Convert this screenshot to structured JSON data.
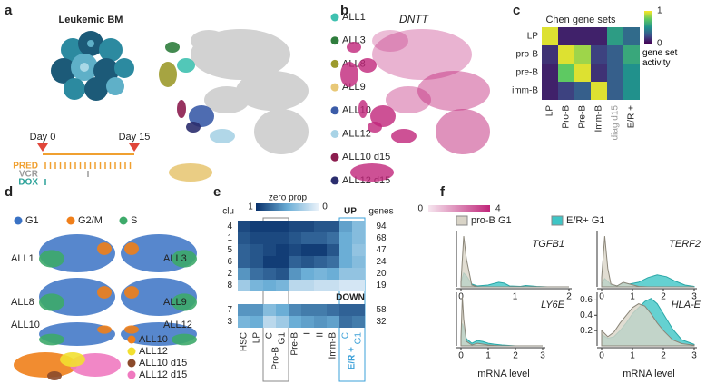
{
  "a": {
    "label": "a",
    "title": "Leukemic BM",
    "timeline": {
      "start": "Day 0",
      "end": "Day 15",
      "treatments": [
        {
          "name": "PRED",
          "color": "#f0a030"
        },
        {
          "name": "VCR",
          "color": "#9a9a9a"
        },
        {
          "name": "DOX",
          "color": "#2aa198"
        }
      ]
    },
    "legend": [
      {
        "name": "ALL1",
        "color": "#3fc1b0"
      },
      {
        "name": "ALL3",
        "color": "#2f7d3d"
      },
      {
        "name": "ALL8",
        "color": "#9c9a2c"
      },
      {
        "name": "ALL9",
        "color": "#e8c877"
      },
      {
        "name": "ALL10",
        "color": "#3b5ca8"
      },
      {
        "name": "ALL12",
        "color": "#a8d3e6"
      },
      {
        "name": "ALL10 d15",
        "color": "#8c1d4f"
      },
      {
        "name": "ALL12 d15",
        "color": "#2b2d6e"
      }
    ]
  },
  "b": {
    "label": "b",
    "gene": "DNTT",
    "colorbar": {
      "ticks": [
        0,
        4
      ],
      "colors": [
        "#f6e6ef",
        "#c0267a"
      ]
    }
  },
  "c": {
    "label": "c",
    "title": "Chen gene sets",
    "rows": [
      "LP",
      "pro-B",
      "pre-B",
      "imm-B"
    ],
    "columns": [
      "LP",
      "Pro-B",
      "Pre-B",
      "Imm-B",
      "diag d15",
      "E/R +"
    ],
    "values": [
      [
        0.95,
        0.1,
        0.1,
        0.1,
        0.55,
        0.35
      ],
      [
        0.15,
        0.95,
        0.85,
        0.2,
        0.3,
        0.6
      ],
      [
        0.1,
        0.75,
        0.95,
        0.15,
        0.3,
        0.5
      ],
      [
        0.1,
        0.2,
        0.3,
        0.95,
        0.3,
        0.5
      ]
    ],
    "colorbar": {
      "ticks": [
        0,
        1
      ],
      "label": "gene set activity"
    }
  },
  "d": {
    "label": "d",
    "phases": [
      {
        "name": "G1",
        "color": "#3a72c4"
      },
      {
        "name": "G2/M",
        "color": "#f07f1a"
      },
      {
        "name": "S",
        "color": "#3daa6a"
      }
    ],
    "samples": [
      "ALL1",
      "ALL3",
      "ALL8",
      "ALL9",
      "ALL10",
      "ALL12"
    ],
    "legend": [
      {
        "name": "ALL10",
        "color": "#f07f1a"
      },
      {
        "name": "ALL12",
        "color": "#f2e030"
      },
      {
        "name": "ALL10 d15",
        "color": "#8b4a2b"
      },
      {
        "name": "ALL12 d15",
        "color": "#f07ac0"
      }
    ]
  },
  "e": {
    "label": "e",
    "row_header": "clu",
    "rows": [
      "4",
      "1",
      "5",
      "6",
      "2",
      "8",
      "7",
      "3"
    ],
    "genes_header": "genes",
    "genes": [
      94,
      68,
      47,
      24,
      20,
      19,
      58,
      32
    ],
    "up": "UP",
    "down": "DOWN",
    "colorbar": {
      "title": "zero prop",
      "ticks": [
        1,
        0
      ]
    },
    "columns": [
      "HSC",
      "LP",
      "C",
      "G1",
      "Pre-B",
      "I",
      "II",
      "Imm-B",
      "C",
      "G1"
    ],
    "groups": [
      "Pro-B",
      "E/R +"
    ],
    "values": [
      [
        0.9,
        0.95,
        0.95,
        0.95,
        0.9,
        0.9,
        0.85,
        0.85,
        0.55,
        0.4
      ],
      [
        0.85,
        0.9,
        0.9,
        0.9,
        0.85,
        0.8,
        0.8,
        0.75,
        0.5,
        0.4
      ],
      [
        0.8,
        0.85,
        0.9,
        0.95,
        0.9,
        0.95,
        0.95,
        0.85,
        0.5,
        0.35
      ],
      [
        0.8,
        0.85,
        0.95,
        0.95,
        0.8,
        0.85,
        0.8,
        0.75,
        0.5,
        0.4
      ],
      [
        0.6,
        0.75,
        0.8,
        0.85,
        0.6,
        0.5,
        0.45,
        0.5,
        0.35,
        0.35
      ],
      [
        0.3,
        0.45,
        0.5,
        0.45,
        0.2,
        0.2,
        0.15,
        0.15,
        0.1,
        0.1
      ],
      [
        0.6,
        0.6,
        0.4,
        0.5,
        0.65,
        0.7,
        0.7,
        0.75,
        0.8,
        0.8
      ],
      [
        0.45,
        0.5,
        0.2,
        0.3,
        0.5,
        0.55,
        0.6,
        0.55,
        0.75,
        0.7
      ]
    ]
  },
  "f": {
    "label": "f",
    "xlabel": "mRNA level",
    "series": [
      {
        "name": "pro-B G1",
        "color": "#d9d4c7"
      },
      {
        "name": "E/R+ G1",
        "color": "#3ec5c5"
      }
    ],
    "plots": [
      {
        "gene": "TGFB1",
        "xlim": [
          0,
          2
        ],
        "xticks": [
          0,
          1,
          2
        ],
        "ylim": [
          0,
          6
        ],
        "x": [
          0,
          0.05,
          0.1,
          0.2,
          0.3,
          0.5,
          0.7,
          0.8,
          0.9,
          1.1,
          1.2,
          1.4,
          1.6,
          1.8,
          2.0
        ],
        "values": [
          [
            0.5,
            5.5,
            3,
            0.2,
            0,
            0,
            0,
            0,
            0,
            0,
            0,
            0,
            0,
            0,
            0
          ],
          [
            0.5,
            1.5,
            1.2,
            0.3,
            0.1,
            0.2,
            0.5,
            0.4,
            0.1,
            0.05,
            0.15,
            0.05,
            0,
            0,
            0
          ]
        ]
      },
      {
        "gene": "TERF2",
        "xlim": [
          0,
          3
        ],
        "xticks": [
          0,
          1,
          2,
          3
        ],
        "ylim": [
          0,
          6
        ],
        "x": [
          0,
          0.1,
          0.2,
          0.3,
          0.5,
          0.7,
          0.9,
          1.2,
          1.5,
          1.8,
          2.1,
          2.4,
          2.7,
          3.0
        ],
        "values": [
          [
            1,
            5.5,
            2,
            0.3,
            0.1,
            0.5,
            0.3,
            0.05,
            0,
            0,
            0,
            0,
            0,
            0
          ],
          [
            0.3,
            0.9,
            0.6,
            0.2,
            0.1,
            0.4,
            0.3,
            0.5,
            1.0,
            1.3,
            1.1,
            0.6,
            0.2,
            0.05
          ]
        ]
      },
      {
        "gene": "LY6E",
        "xlim": [
          0,
          3
        ],
        "xticks": [
          0,
          1,
          2,
          3
        ],
        "ylim": [
          0,
          6
        ],
        "x": [
          0,
          0.05,
          0.1,
          0.2,
          0.4,
          0.6,
          0.8,
          1.0,
          1.2,
          1.5,
          2,
          2.5,
          3
        ],
        "values": [
          [
            1,
            5.5,
            3,
            0.5,
            0.1,
            0.3,
            0.2,
            0.1,
            0.05,
            0,
            0,
            0,
            0
          ],
          [
            0.5,
            2.5,
            2,
            0.8,
            0.3,
            0.6,
            0.5,
            0.3,
            0.2,
            0.1,
            0,
            0,
            0
          ]
        ]
      },
      {
        "gene": "HLA-E",
        "xlim": [
          0,
          3
        ],
        "xticks": [
          0,
          1,
          2,
          3
        ],
        "ylim": [
          0,
          0.7
        ],
        "yticks": [
          0.2,
          0.4,
          0.6
        ],
        "x": [
          0,
          0.2,
          0.4,
          0.6,
          0.8,
          1.0,
          1.2,
          1.4,
          1.6,
          1.8,
          2.0,
          2.3,
          2.6,
          3.0
        ],
        "values": [
          [
            0.2,
            0.12,
            0.18,
            0.3,
            0.4,
            0.5,
            0.55,
            0.52,
            0.42,
            0.3,
            0.2,
            0.08,
            0.03,
            0.01
          ],
          [
            0.15,
            0.1,
            0.12,
            0.2,
            0.3,
            0.42,
            0.5,
            0.58,
            0.62,
            0.55,
            0.42,
            0.22,
            0.08,
            0.02
          ]
        ]
      }
    ]
  }
}
